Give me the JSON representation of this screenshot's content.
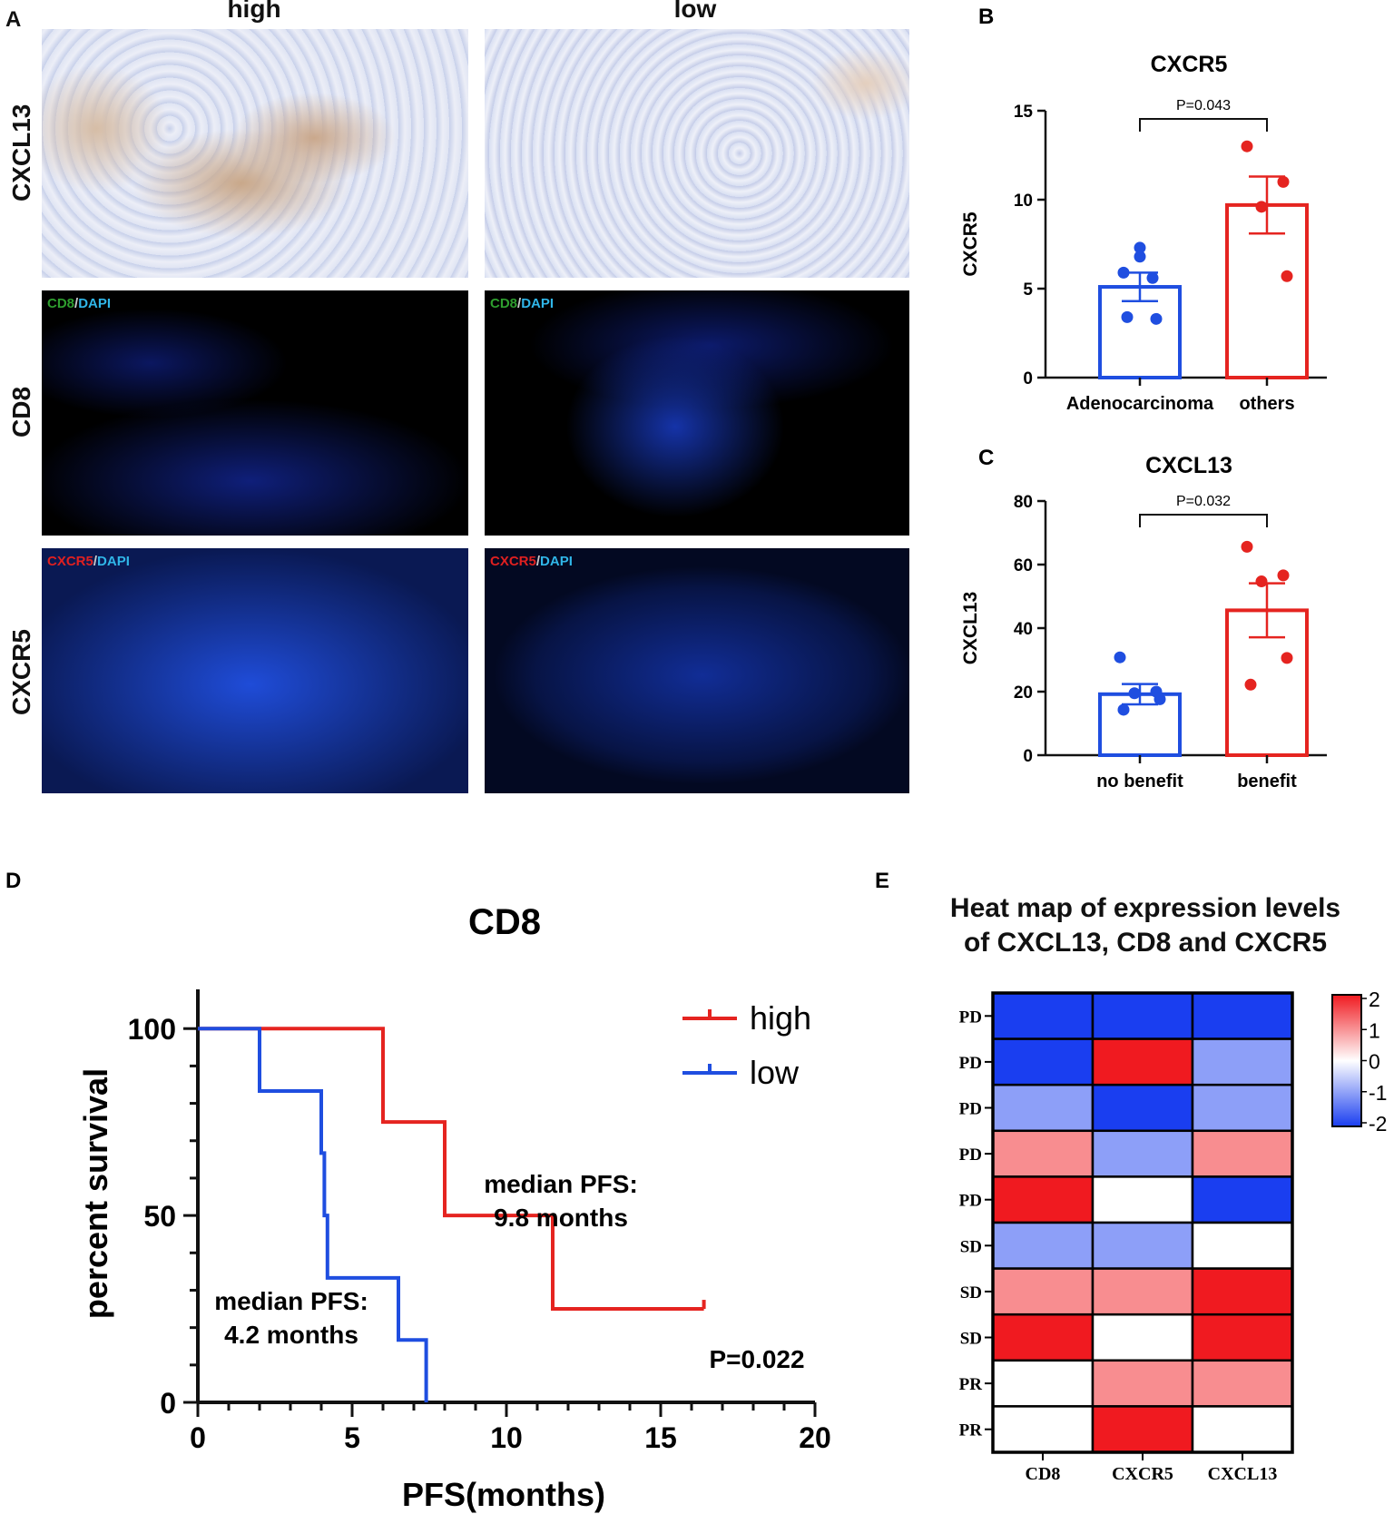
{
  "panel_a": {
    "letter": "A",
    "columns": [
      "high",
      "low"
    ],
    "rows": [
      {
        "name": "CXCL13",
        "type": "ihc",
        "labels": [
          "",
          ""
        ]
      },
      {
        "name": "CD8",
        "type": "if",
        "marker": "CD8",
        "marker_color": "#2e9e2e",
        "dapi": "DAPI",
        "dapi_color": "#30b6e8"
      },
      {
        "name": "CXCR5",
        "type": "if",
        "marker": "CXCR5",
        "marker_color": "#e02020",
        "dapi": "DAPI",
        "dapi_color": "#30b6e8"
      }
    ]
  },
  "colors": {
    "blue": "#1f4ee0",
    "red": "#e52420",
    "heat_high": "#f01a20",
    "heat_low": "#1a3ef0"
  },
  "chart_data": [
    {
      "id": "B",
      "letter": "B",
      "type": "bar",
      "title": "CXCR5",
      "ylabel": "CXCR5",
      "categories": [
        "Adenocarcinoma",
        "others"
      ],
      "values": [
        5.1,
        9.7
      ],
      "sem": [
        0.8,
        1.6
      ],
      "points": [
        [
          7.3,
          6.8,
          5.9,
          5.6,
          3.4,
          3.3
        ],
        [
          13.0,
          11.0,
          9.6,
          5.7
        ]
      ],
      "ylim": [
        0,
        15
      ],
      "yticks": [
        0,
        5,
        10,
        15
      ],
      "annotation": "P=0.043"
    },
    {
      "id": "C",
      "letter": "C",
      "type": "bar",
      "title": "CXCL13",
      "ylabel": "CXCL13",
      "categories": [
        "no benefit",
        "benefit"
      ],
      "values": [
        19.2,
        45.6
      ],
      "sem": [
        3.2,
        8.5
      ],
      "points": [
        [
          30.8,
          20.0,
          19.5,
          17.6,
          14.3
        ],
        [
          65.6,
          56.6,
          54.7,
          30.6,
          22.2
        ]
      ],
      "ylim": [
        0,
        80
      ],
      "yticks": [
        0,
        20,
        40,
        60,
        80
      ],
      "annotation": "P=0.032"
    },
    {
      "id": "D",
      "letter": "D",
      "type": "line",
      "title": "CD8",
      "xlabel": "PFS(months)",
      "ylabel": "percent survival",
      "xlim": [
        0,
        20
      ],
      "ylim": [
        0,
        100
      ],
      "xticks": [
        0,
        5,
        10,
        15,
        20
      ],
      "yticks": [
        0,
        50,
        100
      ],
      "series": [
        {
          "name": "high",
          "steps": [
            [
              0,
              100
            ],
            [
              6.0,
              75
            ],
            [
              8.0,
              50
            ],
            [
              11.5,
              25
            ],
            [
              16.4,
              25
            ]
          ],
          "censor": [
            [
              16.4,
              25
            ]
          ]
        },
        {
          "name": "low",
          "steps": [
            [
              0,
              100
            ],
            [
              2.0,
              83.3
            ],
            [
              4.0,
              66.7
            ],
            [
              4.1,
              50
            ],
            [
              4.2,
              33.3
            ],
            [
              6.5,
              16.7
            ],
            [
              7.4,
              0
            ]
          ],
          "censor": []
        }
      ],
      "annotations": [
        "median PFS:",
        "9.8 months",
        "median PFS:",
        "4.2 months",
        "P=0.022"
      ]
    },
    {
      "id": "E",
      "letter": "E",
      "type": "heatmap",
      "title": [
        "Heat map of expression levels",
        "of CXCL13, CD8 and CXCR5"
      ],
      "columns": [
        "CD8",
        "CXCR5",
        "CXCL13"
      ],
      "rows": [
        "PD",
        "PD",
        "PD",
        "PD",
        "PD",
        "SD",
        "SD",
        "SD",
        "PR",
        "PR"
      ],
      "values": [
        [
          -2,
          -2,
          -2
        ],
        [
          -2,
          2,
          -1
        ],
        [
          -1,
          -2,
          -1
        ],
        [
          1,
          -1,
          1
        ],
        [
          2,
          0,
          -2
        ],
        [
          -1,
          -1,
          0
        ],
        [
          1,
          1,
          2
        ],
        [
          2,
          0,
          2
        ],
        [
          0,
          1,
          1
        ],
        [
          0,
          2,
          0
        ]
      ],
      "legend_ticks": [
        2,
        1,
        0,
        -1,
        -2
      ]
    }
  ]
}
